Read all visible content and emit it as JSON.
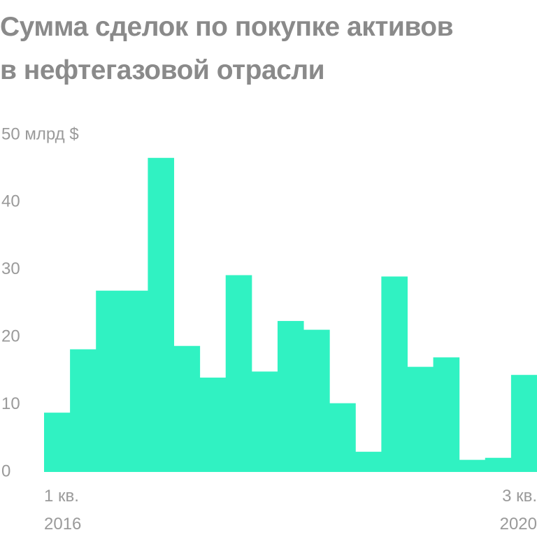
{
  "chart_data": {
    "type": "bar",
    "title": "Сумма сделок по покупке активов\nв нефтегазовой отрасли",
    "categories": [
      "1 кв.\n2016",
      null,
      null,
      null,
      null,
      null,
      null,
      null,
      null,
      null,
      null,
      null,
      null,
      null,
      null,
      null,
      null,
      null,
      "3 кв.\n2020"
    ],
    "values": [
      8.8,
      18.2,
      26.9,
      26.9,
      46.6,
      18.7,
      14.0,
      29.2,
      14.9,
      22.4,
      21.1,
      10.2,
      3.0,
      29.0,
      15.6,
      17.0,
      1.8,
      2.1,
      14.4
    ],
    "color": "#30f2c2",
    "ylim": [
      0,
      50
    ],
    "yticks": [
      0,
      10,
      20,
      30,
      40,
      {
        "value": 50,
        "label": "50 млрд $"
      }
    ],
    "grid": false
  }
}
